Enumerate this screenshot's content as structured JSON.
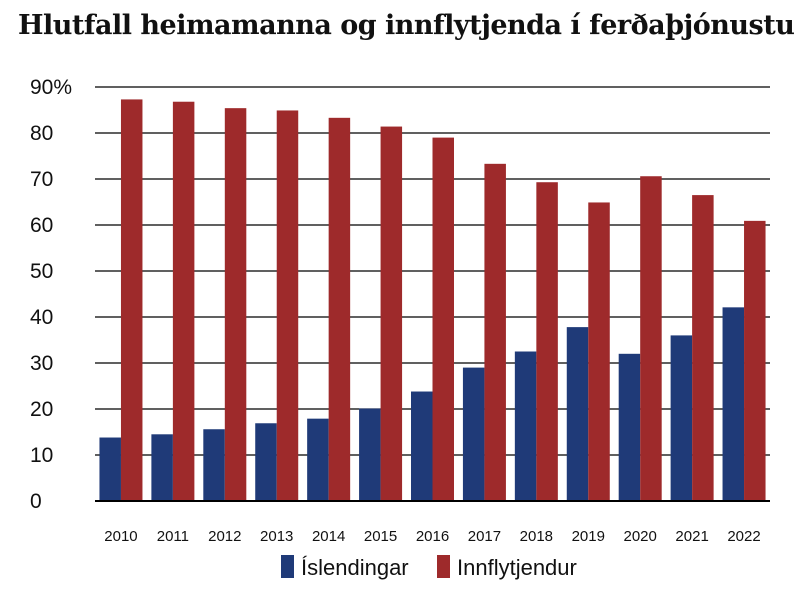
{
  "chart_data": {
    "type": "bar",
    "title": "Hlutfall heimamanna og innflytjenda í ferðaþjónustu",
    "categories": [
      "2010",
      "2011",
      "2012",
      "2013",
      "2014",
      "2015",
      "2016",
      "2017",
      "2018",
      "2019",
      "2020",
      "2021",
      "2022"
    ],
    "series": [
      {
        "name": "Íslendingar",
        "color": "#1f3a78",
        "values": [
          13.8,
          14.5,
          15.6,
          16.9,
          17.9,
          20.1,
          23.8,
          29.0,
          32.5,
          37.8,
          32.0,
          36.0,
          42.1
        ]
      },
      {
        "name": "Innflytjendur",
        "color": "#9e2a2b",
        "values": [
          87.3,
          86.8,
          85.4,
          84.9,
          83.3,
          81.4,
          79.0,
          73.3,
          69.3,
          64.9,
          70.6,
          66.5,
          60.9
        ]
      }
    ],
    "yticks": [
      "0",
      "10",
      "20",
      "30",
      "40",
      "50",
      "60",
      "70",
      "80",
      "90%"
    ],
    "ylim": [
      0,
      90
    ],
    "grid": true,
    "legend": "bottom"
  }
}
